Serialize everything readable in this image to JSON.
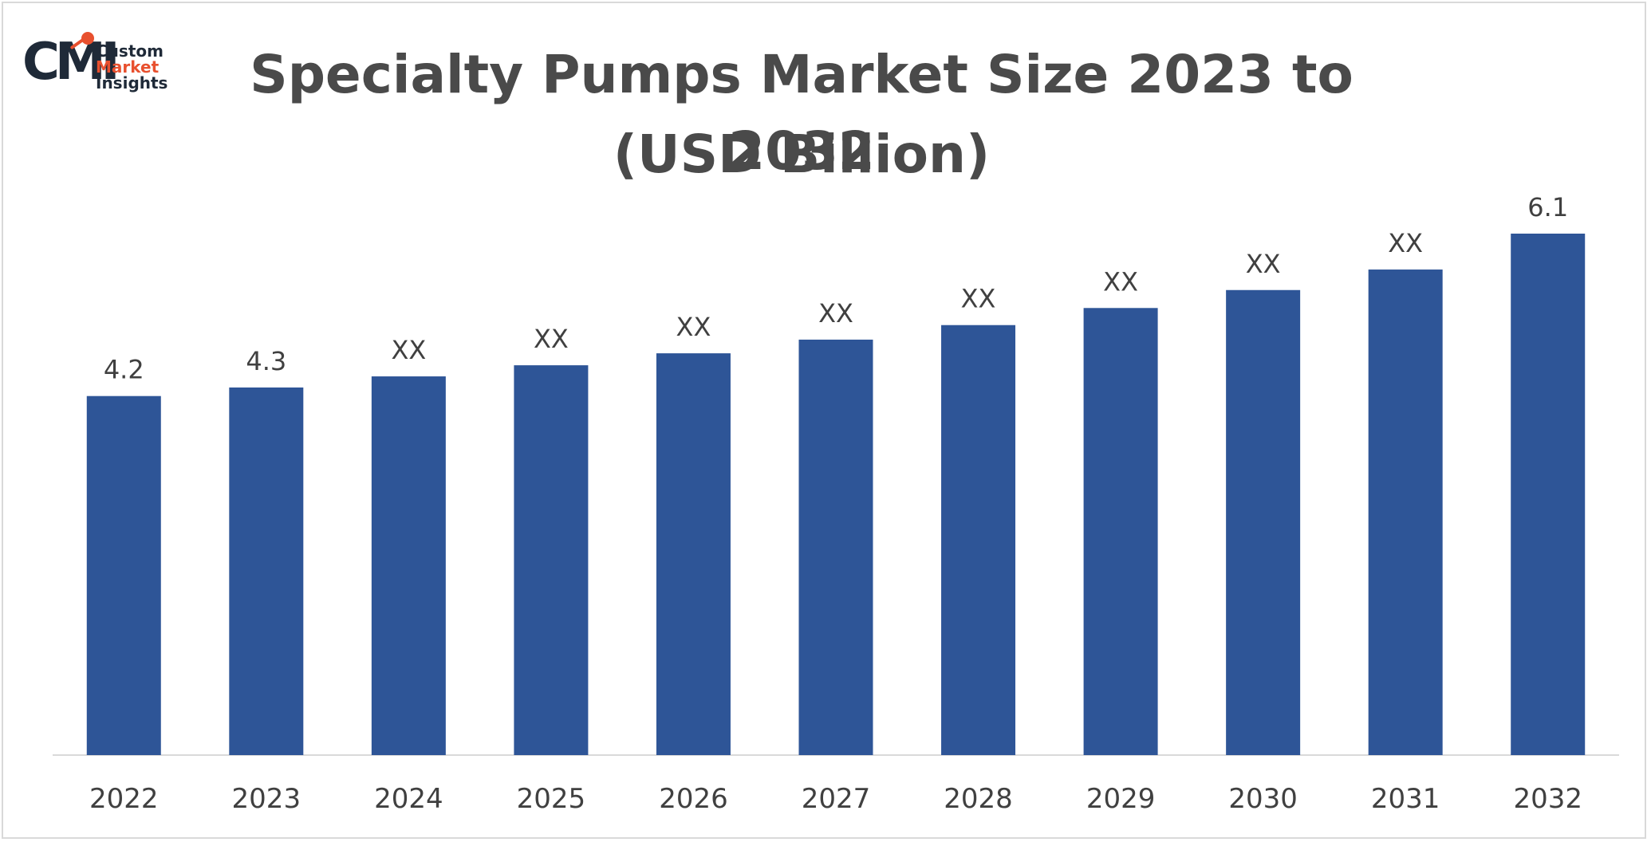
{
  "logo": {
    "mark": "CMI",
    "line1": "Custom",
    "line2": "Market",
    "line3": "Insights"
  },
  "chart_data": {
    "type": "bar",
    "title": "Specialty Pumps Market Size 2023 to 2032",
    "subtitle": "(USD Billion)",
    "categories": [
      "2022",
      "2023",
      "2024",
      "2025",
      "2026",
      "2027",
      "2028",
      "2029",
      "2030",
      "2031",
      "2032"
    ],
    "values": [
      4.2,
      4.3,
      4.43,
      4.56,
      4.7,
      4.86,
      5.03,
      5.23,
      5.44,
      5.68,
      6.1
    ],
    "data_labels": [
      "4.2",
      "4.3",
      "XX",
      "XX",
      "XX",
      "XX",
      "XX",
      "XX",
      "XX",
      "XX",
      "6.1"
    ],
    "xlabel": "",
    "ylabel": "",
    "ylim": [
      0,
      6.5
    ],
    "grid": false,
    "legend": "none",
    "bar_color": "#2e5597",
    "axis_color": "#d9d9d9"
  }
}
